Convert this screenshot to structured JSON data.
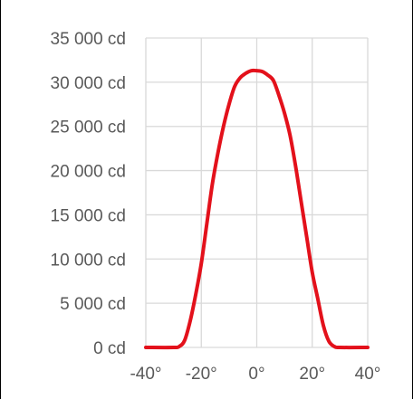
{
  "chart_data": {
    "type": "line",
    "title": "",
    "xlabel": "",
    "ylabel": "",
    "xlim": [
      -40,
      40
    ],
    "ylim": [
      0,
      35000
    ],
    "grid": true,
    "legend": "none",
    "x_ticks": [
      -40,
      -20,
      0,
      20,
      40
    ],
    "x_tick_labels": [
      "-40°",
      "-20°",
      "0°",
      "20°",
      "40°"
    ],
    "y_ticks": [
      0,
      5000,
      10000,
      15000,
      20000,
      25000,
      30000,
      35000
    ],
    "y_tick_labels": [
      "0 cd",
      "5 000 cd",
      "10 000 cd",
      "15 000 cd",
      "20 000 cd",
      "25 000 cd",
      "30 000 cd",
      "35 000 cd"
    ],
    "series": [
      {
        "color": "#e3111b",
        "x": [
          -40,
          -30,
          -28,
          -26,
          -24,
          -22,
          -20,
          -18,
          -16,
          -14,
          -12,
          -10,
          -8,
          -6,
          -4,
          -2,
          0,
          2,
          4,
          6,
          8,
          10,
          12,
          14,
          16,
          18,
          20,
          22,
          24,
          26,
          28,
          30,
          40
        ],
        "y": [
          0,
          0,
          100,
          800,
          3000,
          6000,
          9500,
          14000,
          18500,
          22000,
          25000,
          27500,
          29500,
          30500,
          31000,
          31300,
          31300,
          31200,
          30800,
          30200,
          28500,
          26500,
          24000,
          20500,
          16500,
          12500,
          8500,
          5500,
          2500,
          700,
          100,
          0,
          0
        ]
      }
    ]
  }
}
